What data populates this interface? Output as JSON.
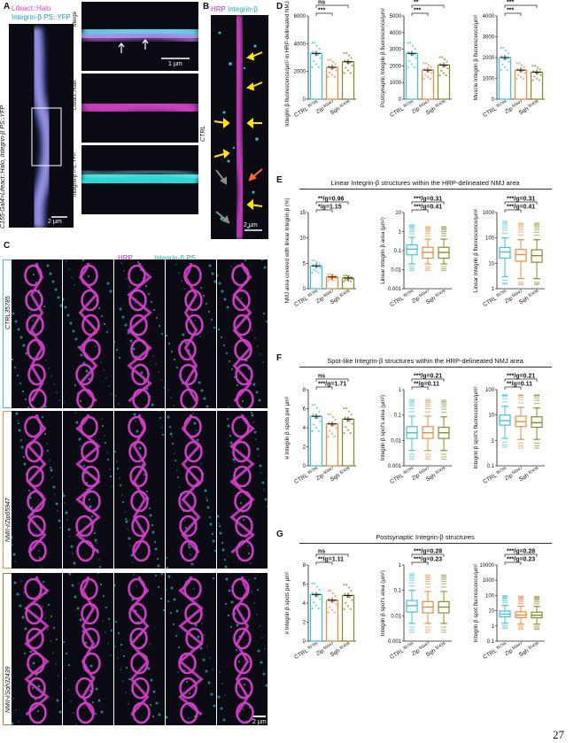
{
  "panels": {
    "A": {
      "label": "A",
      "title1": "Lifeact::Halo",
      "title2": "Integrin-β PS::YFP",
      "side": "C155-Gal4>Lifeact::Halo, Integrin-β PS::YFP",
      "scale_main": "2 µm",
      "scale_zoom": "1 µm",
      "zoom_labels": [
        "Merge",
        "Lifeact::Halo",
        "Integrin-β PS::YFP"
      ]
    },
    "B": {
      "label": "B",
      "title_hrp": "HRP",
      "title_int": "Integrin-β",
      "side": "CTRL",
      "scale": "2 µm"
    },
    "C": {
      "label": "C",
      "title_hrp": "HRP",
      "title_int": "Integrin-β PS",
      "rows": [
        "CTRL35785",
        "NMII-i/Zip65947",
        "NMII-i/Sqh32439"
      ],
      "scale": "2 µm"
    },
    "D": {
      "label": "D"
    },
    "E": {
      "label": "E",
      "title": "Linear Integrin-β structures within the HRP-delineated NMJ area"
    },
    "F": {
      "label": "F",
      "title": "Spot-like Integrin-β structures within the HRP-delineated NMJ area"
    },
    "G": {
      "label": "G",
      "title": "Postsynaptic Integrin-β structures"
    }
  },
  "groups": [
    "CTRL",
    "Zip",
    "Sqh"
  ],
  "group_sup": [
    "35785",
    "65947",
    "32439"
  ],
  "colors": {
    "ctrl": "#3ec5d0",
    "zip": "#f08a3c",
    "sqh": "#8c8a2a",
    "magenta": "#d43cc8",
    "cyan": "#3fe0e0",
    "arrow_yellow": "#ffe600",
    "arrow_gray": "#8c8c8c",
    "arrow_orange": "#ff6a2a"
  },
  "page_number": "27",
  "chart_data": [
    {
      "id": "D1",
      "type": "bar",
      "ylabel": "Integrin β fluorescence/µm² in HRP-delineated NMJ area",
      "categories": [
        "CTRL",
        "Zip",
        "Sqh"
      ],
      "values": [
        3300,
        2300,
        2700
      ],
      "ylim": [
        0,
        6000
      ],
      "yticks": [
        0,
        2000,
        4000,
        6000
      ],
      "annotations": [
        {
          "text": "ns",
          "pair": [
            0,
            2
          ]
        },
        {
          "text": "***",
          "pair": [
            0,
            1
          ]
        }
      ]
    },
    {
      "id": "D2",
      "type": "bar",
      "ylabel": "Postsynaptic Integrin β fluorescence/µm²",
      "categories": [
        "CTRL",
        "Zip",
        "Sqh"
      ],
      "values": [
        2750,
        1750,
        2050
      ],
      "ylim": [
        0,
        5000
      ],
      "yticks": [
        0,
        1000,
        2000,
        3000,
        4000,
        5000
      ],
      "annotations": [
        {
          "text": "**",
          "pair": [
            0,
            2
          ]
        },
        {
          "text": "***",
          "pair": [
            0,
            1
          ]
        }
      ]
    },
    {
      "id": "D3",
      "type": "bar",
      "ylabel": "Muscle Integrin β fluorescence/µm²",
      "categories": [
        "CTRL",
        "Zip",
        "Sqh"
      ],
      "values": [
        2000,
        1400,
        1300
      ],
      "ylim": [
        0,
        4000
      ],
      "yticks": [
        0,
        1000,
        2000,
        3000,
        4000
      ],
      "annotations": [
        {
          "text": "***",
          "pair": [
            0,
            2
          ]
        },
        {
          "text": "***",
          "pair": [
            0,
            1
          ]
        }
      ]
    },
    {
      "id": "E1",
      "type": "bar",
      "ylabel": "NMJ area covered with linear Integrin β (%)",
      "categories": [
        "CTRL",
        "Zip",
        "Sqh"
      ],
      "values": [
        4.5,
        2.3,
        2.1
      ],
      "ylim": [
        0,
        15
      ],
      "yticks": [
        0,
        5,
        10,
        15
      ],
      "annotations": [
        {
          "text": "**/g=0.96",
          "pair": [
            0,
            2
          ]
        },
        {
          "text": "*/g=1.15",
          "pair": [
            0,
            1
          ]
        }
      ]
    },
    {
      "id": "E2",
      "type": "box",
      "scale": "log",
      "ylabel": "Linear Integrin β area (µm²)",
      "categories": [
        "CTRL",
        "Zip",
        "Sqh"
      ],
      "median": [
        0.12,
        0.08,
        0.08
      ],
      "q1": [
        0.06,
        0.04,
        0.04
      ],
      "q3": [
        0.2,
        0.15,
        0.15
      ],
      "whisk_lo": [
        0.02,
        0.02,
        0.02
      ],
      "whisk_hi": [
        0.5,
        0.4,
        0.4
      ],
      "ylim": [
        0.001,
        10
      ],
      "yticks": [
        0.001,
        0.01,
        0.1,
        1,
        10
      ],
      "annotations": [
        {
          "text": "***/g=0.31",
          "pair": [
            0,
            2
          ]
        },
        {
          "text": "***/g=0.41",
          "pair": [
            0,
            1
          ]
        }
      ]
    },
    {
      "id": "E3",
      "type": "box",
      "scale": "log",
      "ylabel": "Linear Integrin β fluorescence/µm²",
      "categories": [
        "CTRL",
        "Zip",
        "Sqh"
      ],
      "median": [
        28,
        22,
        20
      ],
      "q1": [
        16,
        12,
        11
      ],
      "q3": [
        42,
        35,
        34
      ],
      "whisk_lo": [
        3,
        2.5,
        2.5
      ],
      "whisk_hi": [
        100,
        85,
        85
      ],
      "ylim": [
        1,
        1000
      ],
      "yticks": [
        1,
        10,
        100,
        1000
      ],
      "annotations": [
        {
          "text": "***/g=0.31",
          "pair": [
            0,
            2
          ]
        },
        {
          "text": "***/g=0.41",
          "pair": [
            0,
            1
          ]
        }
      ]
    },
    {
      "id": "F1",
      "type": "bar",
      "ylabel": "# Integrin β spots per µm²",
      "categories": [
        "CTRL",
        "Zip",
        "Sqh"
      ],
      "values": [
        5.2,
        4.4,
        4.9
      ],
      "ylim": [
        0,
        8
      ],
      "yticks": [
        0,
        2,
        4,
        6,
        8
      ],
      "annotations": [
        {
          "text": "ns",
          "pair": [
            0,
            2
          ]
        },
        {
          "text": "***/g=1.71",
          "pair": [
            0,
            1
          ]
        }
      ]
    },
    {
      "id": "F2",
      "type": "box",
      "scale": "log",
      "ylabel": "Integrin β spot's area (µm²)",
      "categories": [
        "CTRL",
        "Zip",
        "Sqh"
      ],
      "median": [
        0.02,
        0.02,
        0.02
      ],
      "q1": [
        0.012,
        0.012,
        0.012
      ],
      "q3": [
        0.035,
        0.035,
        0.033
      ],
      "whisk_lo": [
        0.004,
        0.004,
        0.004
      ],
      "whisk_hi": [
        0.09,
        0.09,
        0.085
      ],
      "ylim": [
        0.001,
        1
      ],
      "yticks": [
        0.001,
        0.01,
        0.1,
        1
      ],
      "annotations": [
        {
          "text": "***/g=0.21",
          "pair": [
            0,
            2
          ]
        },
        {
          "text": "**/g=0.11",
          "pair": [
            0,
            1
          ]
        }
      ]
    },
    {
      "id": "F3",
      "type": "box",
      "scale": "log",
      "ylabel": "Integrin β spot's fluorescence/µm²",
      "categories": [
        "CTRL",
        "Zip",
        "Sqh"
      ],
      "median": [
        6,
        5.5,
        5
      ],
      "q1": [
        4,
        3.5,
        3.3
      ],
      "q3": [
        10,
        9,
        8.5
      ],
      "whisk_lo": [
        1.2,
        1.1,
        1.1
      ],
      "whisk_hi": [
        22,
        20,
        19
      ],
      "ylim": [
        0.1,
        100
      ],
      "yticks": [
        0.1,
        1,
        10,
        100
      ],
      "annotations": [
        {
          "text": "***/g=0.21",
          "pair": [
            0,
            2
          ]
        },
        {
          "text": "**/g=0.11",
          "pair": [
            0,
            1
          ]
        }
      ]
    },
    {
      "id": "G1",
      "type": "bar",
      "ylabel": "# Integrin β spots per µm²",
      "categories": [
        "CTRL",
        "Zip",
        "Sqh"
      ],
      "values": [
        4.9,
        4.3,
        4.8
      ],
      "ylim": [
        0,
        8
      ],
      "yticks": [
        0,
        2,
        4,
        6,
        8
      ],
      "annotations": [
        {
          "text": "ns",
          "pair": [
            0,
            2
          ]
        },
        {
          "text": "**/g=1.11",
          "pair": [
            0,
            1
          ]
        }
      ]
    },
    {
      "id": "G2",
      "type": "box",
      "scale": "log",
      "ylabel": "Integrin β spot's area (µm²)",
      "categories": [
        "CTRL",
        "Zip",
        "Sqh"
      ],
      "median": [
        0.025,
        0.022,
        0.022
      ],
      "q1": [
        0.014,
        0.013,
        0.013
      ],
      "q3": [
        0.04,
        0.036,
        0.036
      ],
      "whisk_lo": [
        0.005,
        0.005,
        0.005
      ],
      "whisk_hi": [
        0.1,
        0.09,
        0.09
      ],
      "ylim": [
        0.001,
        1
      ],
      "yticks": [
        0.001,
        0.01,
        0.1,
        1
      ],
      "annotations": [
        {
          "text": "***/g=0.28",
          "pair": [
            0,
            2
          ]
        },
        {
          "text": "***/g=0.23",
          "pair": [
            0,
            1
          ]
        }
      ]
    },
    {
      "id": "G3",
      "type": "box",
      "scale": "log",
      "ylabel": "Integrin β spot fluorescence/µm²",
      "categories": [
        "CTRL",
        "Zip",
        "Sqh"
      ],
      "median": [
        6,
        5.2,
        5
      ],
      "q1": [
        4,
        3.5,
        3.4
      ],
      "q3": [
        9.5,
        8.5,
        8
      ],
      "whisk_lo": [
        1.5,
        1.3,
        1.3
      ],
      "whisk_hi": [
        22,
        20,
        19
      ],
      "ylim": [
        0.1,
        10000
      ],
      "yticks": [
        0.1,
        1,
        10,
        100,
        1000,
        10000
      ],
      "annotations": [
        {
          "text": "***/g=0.28",
          "pair": [
            0,
            2
          ]
        },
        {
          "text": "***/g=0.23",
          "pair": [
            0,
            1
          ]
        }
      ]
    }
  ]
}
